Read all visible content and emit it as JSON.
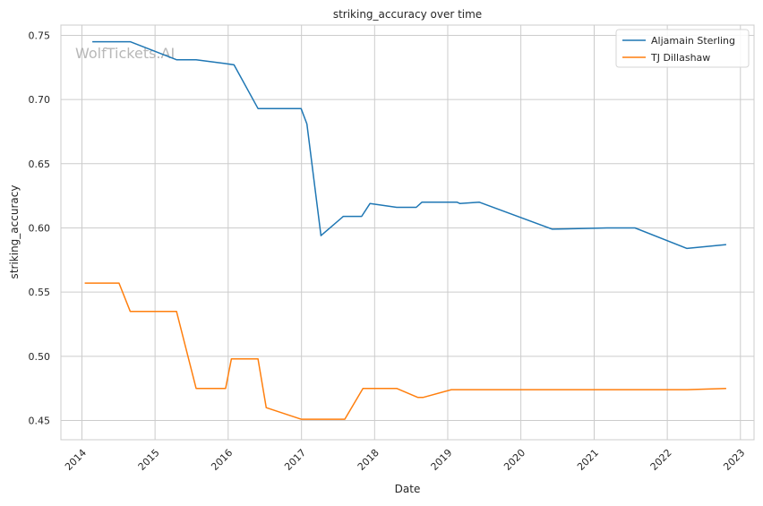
{
  "chart_data": {
    "type": "line",
    "title": "striking_accuracy over time",
    "xlabel": "Date",
    "ylabel": "striking_accuracy",
    "watermark": "WolfTickets.AI",
    "grid": true,
    "legend_position": "top-right",
    "xlim": [
      "2013-09-18",
      "2023-03-10"
    ],
    "ylim": [
      0.435,
      0.758
    ],
    "x_ticks": [
      "2014",
      "2015",
      "2016",
      "2017",
      "2018",
      "2019",
      "2020",
      "2021",
      "2022",
      "2023"
    ],
    "y_ticks": [
      "0.45",
      "0.50",
      "0.55",
      "0.60",
      "0.65",
      "0.70",
      "0.75"
    ],
    "series": [
      {
        "name": "Aljamain Sterling",
        "color": "#1f77b4",
        "x": [
          "2014-02-22",
          "2014-08-30",
          "2015-04-18",
          "2015-07-25",
          "2015-12-19",
          "2016-01-30",
          "2016-05-29",
          "2016-12-30",
          "2017-01-28",
          "2017-04-08",
          "2017-07-29",
          "2017-10-28",
          "2017-12-09",
          "2018-04-21",
          "2018-07-28",
          "2018-08-25",
          "2019-02-17",
          "2019-03-02",
          "2019-06-08",
          "2020-06-06",
          "2021-03-06",
          "2021-07-24",
          "2022-04-09",
          "2022-10-22"
        ],
        "y": [
          0.745,
          0.745,
          0.731,
          0.731,
          0.728,
          0.727,
          0.693,
          0.693,
          0.681,
          0.594,
          0.609,
          0.609,
          0.619,
          0.616,
          0.616,
          0.62,
          0.62,
          0.619,
          0.62,
          0.599,
          0.6,
          0.6,
          0.584,
          0.587
        ]
      },
      {
        "name": "TJ Dillashaw",
        "color": "#ff7f0e",
        "x": [
          "2014-01-15",
          "2014-07-05",
          "2014-08-30",
          "2015-04-18",
          "2015-07-25",
          "2015-12-19",
          "2016-01-17",
          "2016-05-29",
          "2016-07-09",
          "2016-12-30",
          "2017-08-05",
          "2017-11-04",
          "2018-04-21",
          "2018-08-04",
          "2018-09-01",
          "2019-01-19",
          "2021-07-24",
          "2022-04-09",
          "2022-10-22"
        ],
        "y": [
          0.557,
          0.557,
          0.535,
          0.535,
          0.475,
          0.475,
          0.498,
          0.498,
          0.46,
          0.451,
          0.451,
          0.475,
          0.475,
          0.468,
          0.468,
          0.474,
          0.474,
          0.474,
          0.475
        ]
      }
    ]
  }
}
